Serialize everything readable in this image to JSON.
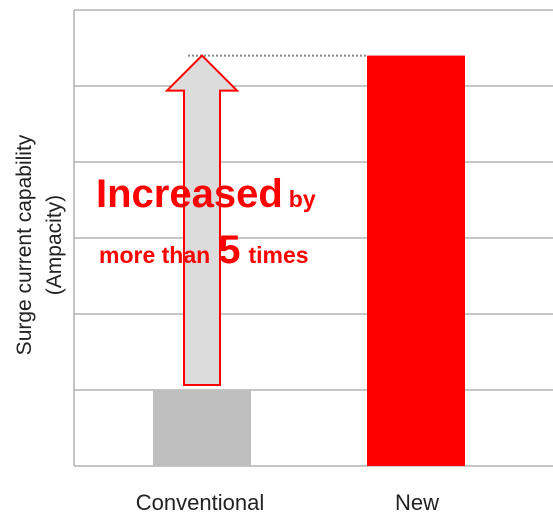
{
  "chart_data": {
    "type": "bar",
    "categories": [
      "Conventional",
      "New"
    ],
    "values": [
      1,
      5.4
    ],
    "ylabel": "Surge current capability (Ampacity)",
    "ylim": [
      0,
      6
    ],
    "grid": true,
    "colors": [
      "#bfbfbf",
      "#ff0000"
    ]
  },
  "annotation": {
    "line1_big": "Increased",
    "line1_small": "by",
    "line2_prefix": "more than",
    "line2_number": "5",
    "line2_suffix": "times",
    "color": "#ff0000"
  }
}
